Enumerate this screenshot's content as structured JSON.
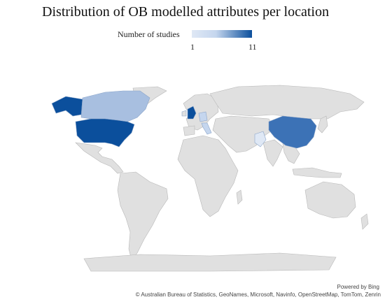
{
  "title": "Distribution of OB modelled attributes per location",
  "legend": {
    "label": "Number of studies",
    "min": "1",
    "max": "11",
    "low_color": "#dfe8f5",
    "high_color": "#0b4f9c"
  },
  "map_data": {
    "type": "choropleth",
    "base_color": "#e0e0e0",
    "border_color": "#b8b8b8",
    "highlighted_regions": [
      {
        "region": "United States",
        "level": "11"
      },
      {
        "region": "United Kingdom",
        "level": "11"
      },
      {
        "region": "China",
        "level": "high"
      },
      {
        "region": "Canada",
        "level": "low"
      },
      {
        "region": "Germany",
        "level": "low"
      },
      {
        "region": "Italy",
        "level": "low"
      },
      {
        "region": "Pakistan",
        "level": "1"
      }
    ]
  },
  "footer": {
    "powered_by": "Powered by Bing",
    "attribution": "© Australian Bureau of Statistics, GeoNames, Microsoft, Navinfo, OpenStreetMap, TomTom, Zenrin"
  }
}
